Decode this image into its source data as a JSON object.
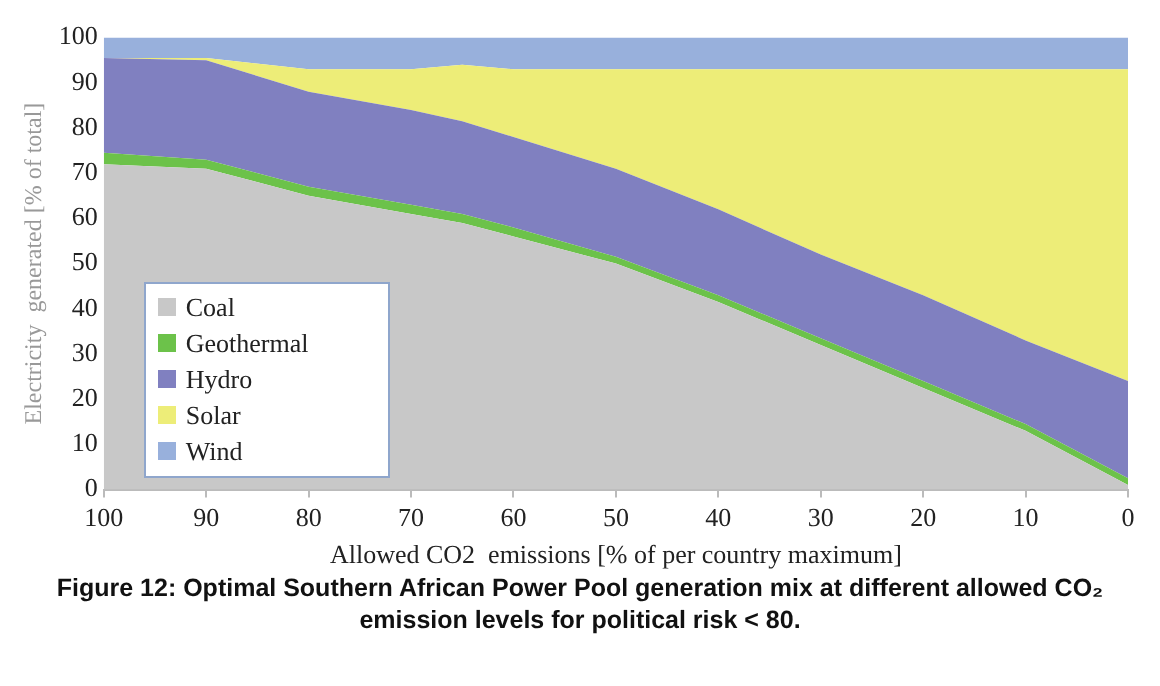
{
  "chart_data": {
    "type": "area",
    "stacked": true,
    "xlabel": "Allowed CO2  emissions [% of per country maximum]",
    "ylabel": "Electricity  generated [% of total]",
    "annotations": [
      "Figure 12: Optimal Southern African Power Pool generation mix at different allowed CO₂ emission levels for political risk < 80."
    ],
    "x": [
      100,
      90,
      80,
      70,
      65,
      60,
      50,
      40,
      30,
      20,
      10,
      0
    ],
    "series": [
      {
        "name": "Coal",
        "color": "#c8c8c8",
        "values": [
          72,
          71,
          65,
          61,
          59,
          56,
          50,
          41.5,
          32,
          22.5,
          13,
          1
        ]
      },
      {
        "name": "Geothermal",
        "color": "#6cc24a",
        "values": [
          2.5,
          2,
          2,
          2,
          2,
          2,
          1.5,
          1.5,
          1.5,
          1.5,
          1.5,
          1.5
        ]
      },
      {
        "name": "Hydro",
        "color": "#8080c0",
        "values": [
          21,
          22,
          21,
          21,
          20.5,
          20,
          19.5,
          19,
          18.5,
          19,
          18.5,
          21.5
        ]
      },
      {
        "name": "Solar",
        "color": "#eded78",
        "values": [
          0,
          0.5,
          5,
          9,
          12.5,
          15,
          22,
          31,
          41,
          50,
          60,
          69
        ]
      },
      {
        "name": "Wind",
        "color": "#98b0dc",
        "values": [
          4.5,
          4.5,
          7,
          7,
          6,
          7,
          7,
          7,
          7,
          7,
          7,
          7
        ]
      }
    ],
    "xlim": [
      100,
      0
    ],
    "xticks": [
      100,
      90,
      80,
      70,
      60,
      50,
      40,
      30,
      20,
      10,
      0
    ],
    "ylim": [
      0,
      100
    ],
    "yticks": [
      0,
      10,
      20,
      30,
      40,
      50,
      60,
      70,
      80,
      90,
      100
    ],
    "grid": false,
    "legend": "bottom left"
  }
}
